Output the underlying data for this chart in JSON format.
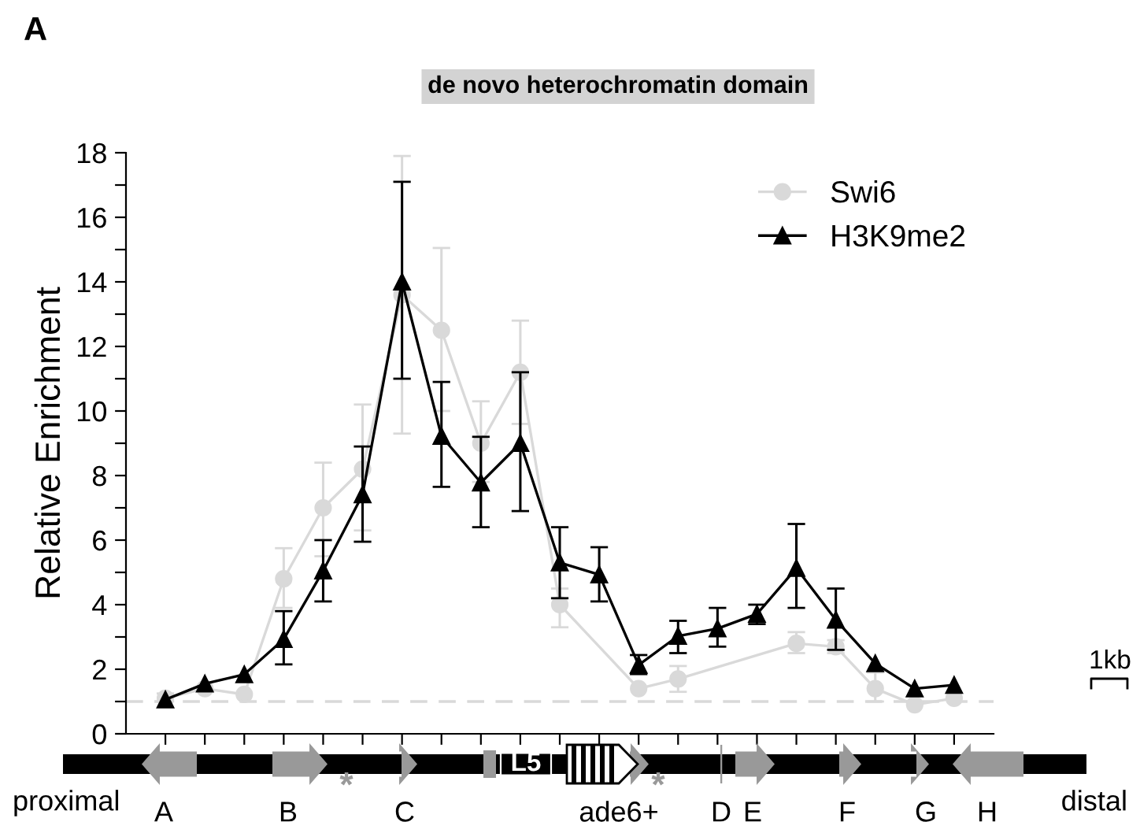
{
  "chart_data": {
    "type": "line",
    "title": "de novo heterochromatin domain",
    "ylabel": "Relative Enrichment",
    "categories": [
      null,
      null,
      null,
      null,
      null,
      null,
      null,
      null,
      null,
      null,
      null,
      null,
      null,
      null,
      null,
      null,
      null,
      null,
      null,
      null,
      null
    ],
    "ylim": [
      0,
      18
    ],
    "yticks": [
      0,
      {
        "value": 1,
        "label": null
      },
      2,
      {
        "value": 3,
        "label": null
      },
      4,
      {
        "value": 5,
        "label": null
      },
      6,
      {
        "value": 7,
        "label": null
      },
      8,
      {
        "value": 9,
        "label": null
      },
      10,
      {
        "value": 11,
        "label": null
      },
      12,
      {
        "value": 13,
        "label": null
      },
      14,
      {
        "value": 15,
        "label": null
      },
      16,
      {
        "value": 17,
        "label": null
      },
      18
    ],
    "series": [
      {
        "name": "Swi6",
        "color": "#d9d9d9",
        "marker": "circle",
        "values": [
          1.1,
          1.4,
          1.22,
          4.8,
          7.0,
          8.2,
          13.6,
          12.5,
          9.0,
          11.2,
          4.0,
          null,
          1.4,
          1.7,
          null,
          null,
          2.8,
          2.7,
          1.4,
          0.9,
          1.1
        ],
        "errors": [
          [
            1.0,
            1.25
          ],
          null,
          null,
          [
            3.9,
            5.75
          ],
          [
            5.5,
            8.4
          ],
          [
            6.3,
            10.2
          ],
          [
            9.3,
            17.9
          ],
          [
            10.0,
            15.05
          ],
          [
            7.8,
            10.3
          ],
          [
            9.6,
            12.8
          ],
          [
            3.3,
            4.5
          ],
          null,
          null,
          [
            1.3,
            2.1
          ],
          null,
          null,
          [
            2.5,
            3.15
          ],
          [
            2.5,
            2.9
          ],
          [
            1.0,
            1.9
          ],
          null,
          null
        ]
      },
      {
        "name": "H3K9me2",
        "color": "#000000",
        "marker": "triangle",
        "values": [
          1.06,
          1.55,
          1.84,
          2.93,
          5.05,
          7.41,
          14.0,
          9.22,
          7.78,
          9.0,
          5.3,
          4.93,
          2.13,
          3.03,
          3.26,
          3.71,
          5.13,
          3.53,
          2.18,
          1.4,
          1.51
        ],
        "errors": [
          null,
          null,
          null,
          [
            2.15,
            3.8
          ],
          [
            4.1,
            6.0
          ],
          [
            5.95,
            8.9
          ],
          [
            11.0,
            17.1
          ],
          [
            7.65,
            10.9
          ],
          [
            6.4,
            9.2
          ],
          [
            6.9,
            11.2
          ],
          [
            4.2,
            6.4
          ],
          [
            4.1,
            5.78
          ],
          [
            1.85,
            2.44
          ],
          [
            2.5,
            3.5
          ],
          [
            2.7,
            3.9
          ],
          [
            3.4,
            4.0
          ],
          [
            3.9,
            6.5
          ],
          [
            2.6,
            4.5
          ],
          null,
          null,
          null
        ]
      }
    ],
    "ref_lines": [
      {
        "axis": "y",
        "value": 1,
        "color": "#d9d9d9",
        "line_style": "dashed"
      }
    ],
    "legend": "top right",
    "grid": false,
    "annotations": [
      "A",
      "1kb",
      "proximal",
      "distal",
      "A",
      "B",
      "C",
      "ade6+",
      "D",
      "E",
      "F",
      "G",
      "H",
      "L5",
      "*",
      "*"
    ]
  }
}
